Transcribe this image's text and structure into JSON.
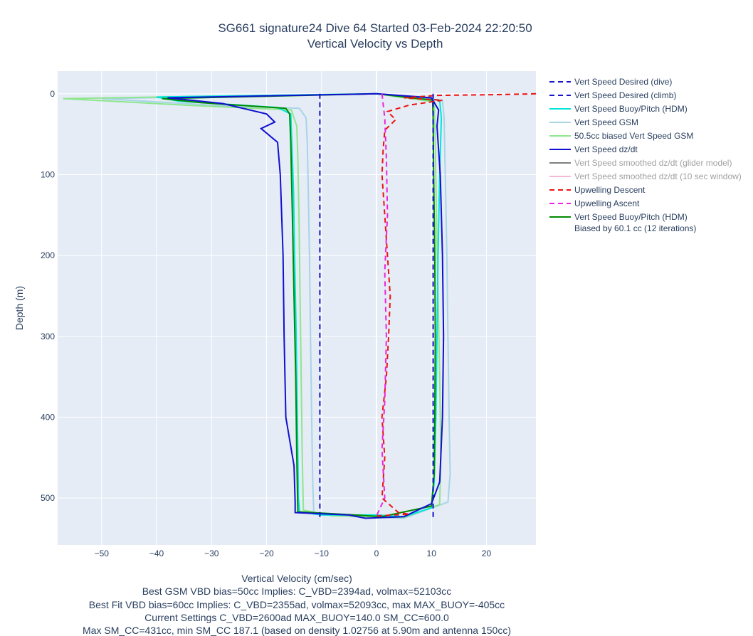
{
  "chart_data": {
    "type": "line",
    "title": "SG661 signature24 Dive 64 Started 03-Feb-2024 22:20:50",
    "subtitle": "Vertical Velocity vs Depth",
    "xlabel": "Vertical Velocity (cm/sec)",
    "ylabel": "Depth (m)",
    "xlim": [
      -58,
      29
    ],
    "ylim": [
      558,
      -28
    ],
    "y_reversed": true,
    "x_ticks": [
      "−50",
      "−40",
      "−30",
      "−20",
      "−10",
      "0",
      "10",
      "20"
    ],
    "x_tick_values": [
      -50,
      -40,
      -30,
      -20,
      -10,
      0,
      10,
      20
    ],
    "y_ticks": [
      "0",
      "100",
      "200",
      "300",
      "400",
      "500"
    ],
    "y_tick_values": [
      0,
      100,
      200,
      300,
      400,
      500
    ],
    "grid": true,
    "legend_position": "right",
    "footnotes": [
      "Best GSM VBD bias=50cc Implies: C_VBD=2394ad, volmax=52103cc",
      "Best Fit VBD bias=60cc Implies: C_VBD=2355ad, volmax=52093cc, max MAX_BUOY=-405cc",
      "Current Settings C_VBD=2600ad MAX_BUOY=140.0 SM_CC=600.0",
      "Max SM_CC=431cc, min SM_CC 187.1 (based on density 1.02756 at 5.90m and antenna 150cc)"
    ],
    "series": [
      {
        "name": "Vert Speed Desired (dive)",
        "color": "#1414c8",
        "dash": "dash",
        "dim": false,
        "points": [
          [
            -10.3,
            0
          ],
          [
            -10.3,
            525
          ]
        ]
      },
      {
        "name": "Vert Speed Desired (climb)",
        "color": "#1414c8",
        "dash": "dash",
        "dim": false,
        "points": [
          [
            10.3,
            0
          ],
          [
            10.3,
            525
          ]
        ]
      },
      {
        "name": "Vert Speed Buoy/Pitch (HDM)",
        "color": "#00e5d8",
        "dash": "solid",
        "dim": false,
        "points": [
          [
            0,
            0
          ],
          [
            -40,
            4
          ],
          [
            -36,
            9
          ],
          [
            -18,
            17
          ],
          [
            -15.6,
            25
          ],
          [
            -15.4,
            60
          ],
          [
            -15.1,
            120
          ],
          [
            -14.9,
            200
          ],
          [
            -14.6,
            300
          ],
          [
            -14.4,
            400
          ],
          [
            -14.2,
            500
          ],
          [
            -14,
            517
          ],
          [
            -10,
            521
          ],
          [
            -4,
            521
          ],
          [
            0,
            521
          ],
          [
            5,
            523
          ],
          [
            10,
            512
          ],
          [
            10.5,
            480
          ],
          [
            10.8,
            400
          ],
          [
            11,
            300
          ],
          [
            11.2,
            200
          ],
          [
            11.5,
            100
          ],
          [
            11.8,
            30
          ],
          [
            11.5,
            8
          ],
          [
            0,
            0
          ]
        ]
      },
      {
        "name": "Vert Speed GSM",
        "color": "#a8d4e6",
        "dash": "solid",
        "dim": false,
        "points": [
          [
            0,
            0
          ],
          [
            -25,
            3
          ],
          [
            -50,
            6
          ],
          [
            -30,
            14
          ],
          [
            -14,
            18
          ],
          [
            -12.8,
            30
          ],
          [
            -12.6,
            60
          ],
          [
            -12.4,
            120
          ],
          [
            -12.2,
            200
          ],
          [
            -12,
            300
          ],
          [
            -11.8,
            400
          ],
          [
            -11.6,
            480
          ],
          [
            -11.4,
            520
          ],
          [
            -4,
            523
          ],
          [
            5,
            525
          ],
          [
            13,
            505
          ],
          [
            13.4,
            470
          ],
          [
            13.2,
            400
          ],
          [
            13,
            300
          ],
          [
            12.8,
            200
          ],
          [
            12.5,
            100
          ],
          [
            12.3,
            30
          ],
          [
            12,
            8
          ],
          [
            0,
            0
          ]
        ]
      },
      {
        "name": "50.5cc biased Vert Speed GSM",
        "color": "#8ee68e",
        "dash": "solid",
        "dim": false,
        "points": [
          [
            0,
            0
          ],
          [
            -30,
            3
          ],
          [
            -57,
            6
          ],
          [
            -35,
            14
          ],
          [
            -15.5,
            20
          ],
          [
            -14.5,
            40
          ],
          [
            -14.3,
            80
          ],
          [
            -14.1,
            150
          ],
          [
            -13.9,
            250
          ],
          [
            -13.7,
            350
          ],
          [
            -13.5,
            450
          ],
          [
            -13.3,
            515
          ],
          [
            -8,
            522
          ],
          [
            0,
            523
          ],
          [
            5,
            524
          ],
          [
            11.5,
            508
          ],
          [
            11.7,
            450
          ],
          [
            11.5,
            350
          ],
          [
            11.2,
            250
          ],
          [
            10.9,
            150
          ],
          [
            10.7,
            60
          ],
          [
            10.5,
            10
          ],
          [
            0,
            0
          ]
        ]
      },
      {
        "name": "Vert Speed dz/dt",
        "color": "#1010d0",
        "dash": "solid",
        "dim": false,
        "points": [
          [
            0,
            0
          ],
          [
            -38,
            5
          ],
          [
            -28,
            12
          ],
          [
            -20,
            25
          ],
          [
            -18.5,
            35
          ],
          [
            -21,
            43
          ],
          [
            -18,
            60
          ],
          [
            -17.5,
            100
          ],
          [
            -17,
            200
          ],
          [
            -16.8,
            300
          ],
          [
            -16.5,
            400
          ],
          [
            -15,
            460
          ],
          [
            -14.8,
            505
          ],
          [
            -14.8,
            518
          ],
          [
            -5,
            521
          ],
          [
            -2,
            525
          ],
          [
            5,
            523
          ],
          [
            10,
            507
          ],
          [
            11.5,
            480
          ],
          [
            12,
            400
          ],
          [
            12.2,
            300
          ],
          [
            12,
            200
          ],
          [
            11.6,
            100
          ],
          [
            11,
            40
          ],
          [
            11.3,
            20
          ],
          [
            10,
            5
          ],
          [
            0,
            0
          ]
        ]
      },
      {
        "name": "Vert Speed smoothed dz/dt (glider model)",
        "color": "#7f7f7f",
        "dash": "solid",
        "dim": true,
        "points": []
      },
      {
        "name": "Vert Speed smoothed dz/dt (10 sec window)",
        "color": "#f5b8d8",
        "dash": "solid",
        "dim": true,
        "points": []
      },
      {
        "name": "Upwelling Descent",
        "color": "#ee1111",
        "dash": "dash",
        "dim": false,
        "points": [
          [
            29,
            0
          ],
          [
            22,
            1
          ],
          [
            11,
            2
          ],
          [
            5,
            5
          ],
          [
            12,
            8
          ],
          [
            6,
            14
          ],
          [
            2,
            22
          ],
          [
            3.5,
            32
          ],
          [
            1.5,
            45
          ],
          [
            1.2,
            70
          ],
          [
            1,
            100
          ],
          [
            1.5,
            150
          ],
          [
            2,
            200
          ],
          [
            2.5,
            250
          ],
          [
            2.2,
            300
          ],
          [
            1.8,
            350
          ],
          [
            1,
            400
          ],
          [
            1.5,
            450
          ],
          [
            1,
            500
          ],
          [
            4,
            518
          ],
          [
            6,
            520
          ],
          [
            0,
            522
          ]
        ]
      },
      {
        "name": "Upwelling Ascent",
        "color": "#ee22dd",
        "dash": "dash",
        "dim": false,
        "points": [
          [
            1,
            0
          ],
          [
            1.5,
            30
          ],
          [
            1.8,
            80
          ],
          [
            2,
            150
          ],
          [
            1.5,
            220
          ],
          [
            1.8,
            300
          ],
          [
            1.5,
            380
          ],
          [
            1,
            440
          ],
          [
            1.5,
            500
          ],
          [
            0,
            522
          ]
        ]
      },
      {
        "name": "Vert Speed Buoy/Pitch (HDM)\nBiased by 60.1 cc (12 iterations)",
        "color": "#008a00",
        "dash": "solid",
        "dim": false,
        "points": [
          [
            0,
            0
          ],
          [
            -39,
            6
          ],
          [
            -32,
            11
          ],
          [
            -16.5,
            18
          ],
          [
            -15.8,
            25
          ],
          [
            -15.6,
            60
          ],
          [
            -15.3,
            150
          ],
          [
            -15,
            250
          ],
          [
            -14.7,
            350
          ],
          [
            -14.5,
            450
          ],
          [
            -14.3,
            517
          ],
          [
            -4,
            521
          ],
          [
            1,
            523
          ],
          [
            10,
            510
          ],
          [
            10.5,
            470
          ],
          [
            10.6,
            400
          ],
          [
            10.7,
            300
          ],
          [
            10.6,
            200
          ],
          [
            10.4,
            100
          ],
          [
            10.3,
            30
          ],
          [
            10.2,
            8
          ],
          [
            0,
            0
          ]
        ]
      }
    ]
  }
}
